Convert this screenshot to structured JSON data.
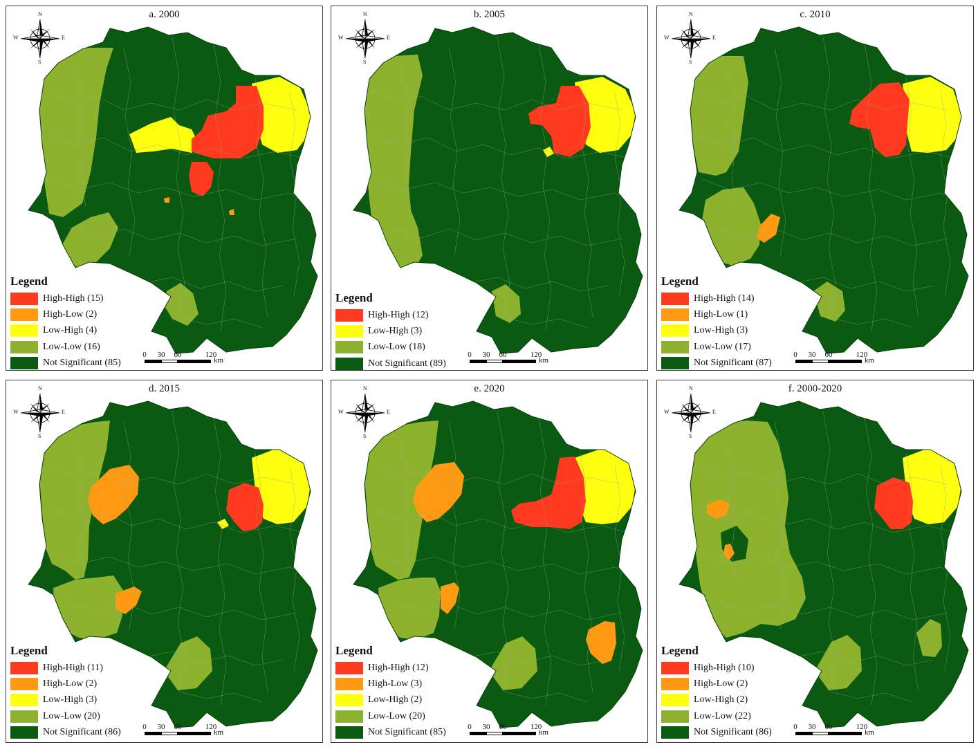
{
  "colors": {
    "high_high": "#ff3a1f",
    "high_low": "#ff9a12",
    "low_high": "#ffff10",
    "low_low": "#8db32e",
    "not_significant": "#0b5a12",
    "boundary": "#8fa58f"
  },
  "compass": {
    "n": "N",
    "s": "S",
    "e": "E",
    "w": "W"
  },
  "scale": {
    "ticks": [
      "0",
      "30",
      "60",
      "120"
    ],
    "unit": "km"
  },
  "panels": [
    {
      "title": "a. 2000",
      "legend_title": "Legend",
      "legend": [
        {
          "cls": "high_high",
          "label": "High-High (15)"
        },
        {
          "cls": "high_low",
          "label": "High-Low (2)"
        },
        {
          "cls": "low_high",
          "label": "Low-High (4)"
        },
        {
          "cls": "low_low",
          "label": "Low-Low (16)"
        },
        {
          "cls": "not_significant",
          "label": "Not Significant (85)"
        }
      ]
    },
    {
      "title": "b. 2005",
      "legend_title": "Legend",
      "legend": [
        {
          "cls": "high_high",
          "label": "High-High (12)"
        },
        {
          "cls": "low_high",
          "label": "Low-High (3)"
        },
        {
          "cls": "low_low",
          "label": "Low-Low (18)"
        },
        {
          "cls": "not_significant",
          "label": "Not Significant (89)"
        }
      ]
    },
    {
      "title": "c. 2010",
      "legend_title": "Legend",
      "legend": [
        {
          "cls": "high_high",
          "label": "High-High (14)"
        },
        {
          "cls": "high_low",
          "label": "High-Low (1)"
        },
        {
          "cls": "low_high",
          "label": "Low-High (3)"
        },
        {
          "cls": "low_low",
          "label": "Low-Low (17)"
        },
        {
          "cls": "not_significant",
          "label": "Not Significant (87)"
        }
      ]
    },
    {
      "title": "d. 2015",
      "legend_title": "Legend",
      "legend": [
        {
          "cls": "high_high",
          "label": "High-High (11)"
        },
        {
          "cls": "high_low",
          "label": "High-Low (2)"
        },
        {
          "cls": "low_high",
          "label": "Low-High (3)"
        },
        {
          "cls": "low_low",
          "label": "Low-Low (20)"
        },
        {
          "cls": "not_significant",
          "label": "Not Significant (86)"
        }
      ]
    },
    {
      "title": "e. 2020",
      "legend_title": "Legend",
      "legend": [
        {
          "cls": "high_high",
          "label": "High-High (12)"
        },
        {
          "cls": "high_low",
          "label": "High-Low (3)"
        },
        {
          "cls": "low_high",
          "label": "Low-High (2)"
        },
        {
          "cls": "low_low",
          "label": "Low-Low (20)"
        },
        {
          "cls": "not_significant",
          "label": "Not Significant (85)"
        }
      ]
    },
    {
      "title": "f. 2000-2020",
      "legend_title": "Legend",
      "legend": [
        {
          "cls": "high_high",
          "label": "High-High (10)"
        },
        {
          "cls": "high_low",
          "label": "High-Low (2)"
        },
        {
          "cls": "low_high",
          "label": "Low-High (2)"
        },
        {
          "cls": "low_low",
          "label": "Low-Low (22)"
        },
        {
          "cls": "not_significant",
          "label": "Not Significant (86)"
        }
      ]
    }
  ]
}
